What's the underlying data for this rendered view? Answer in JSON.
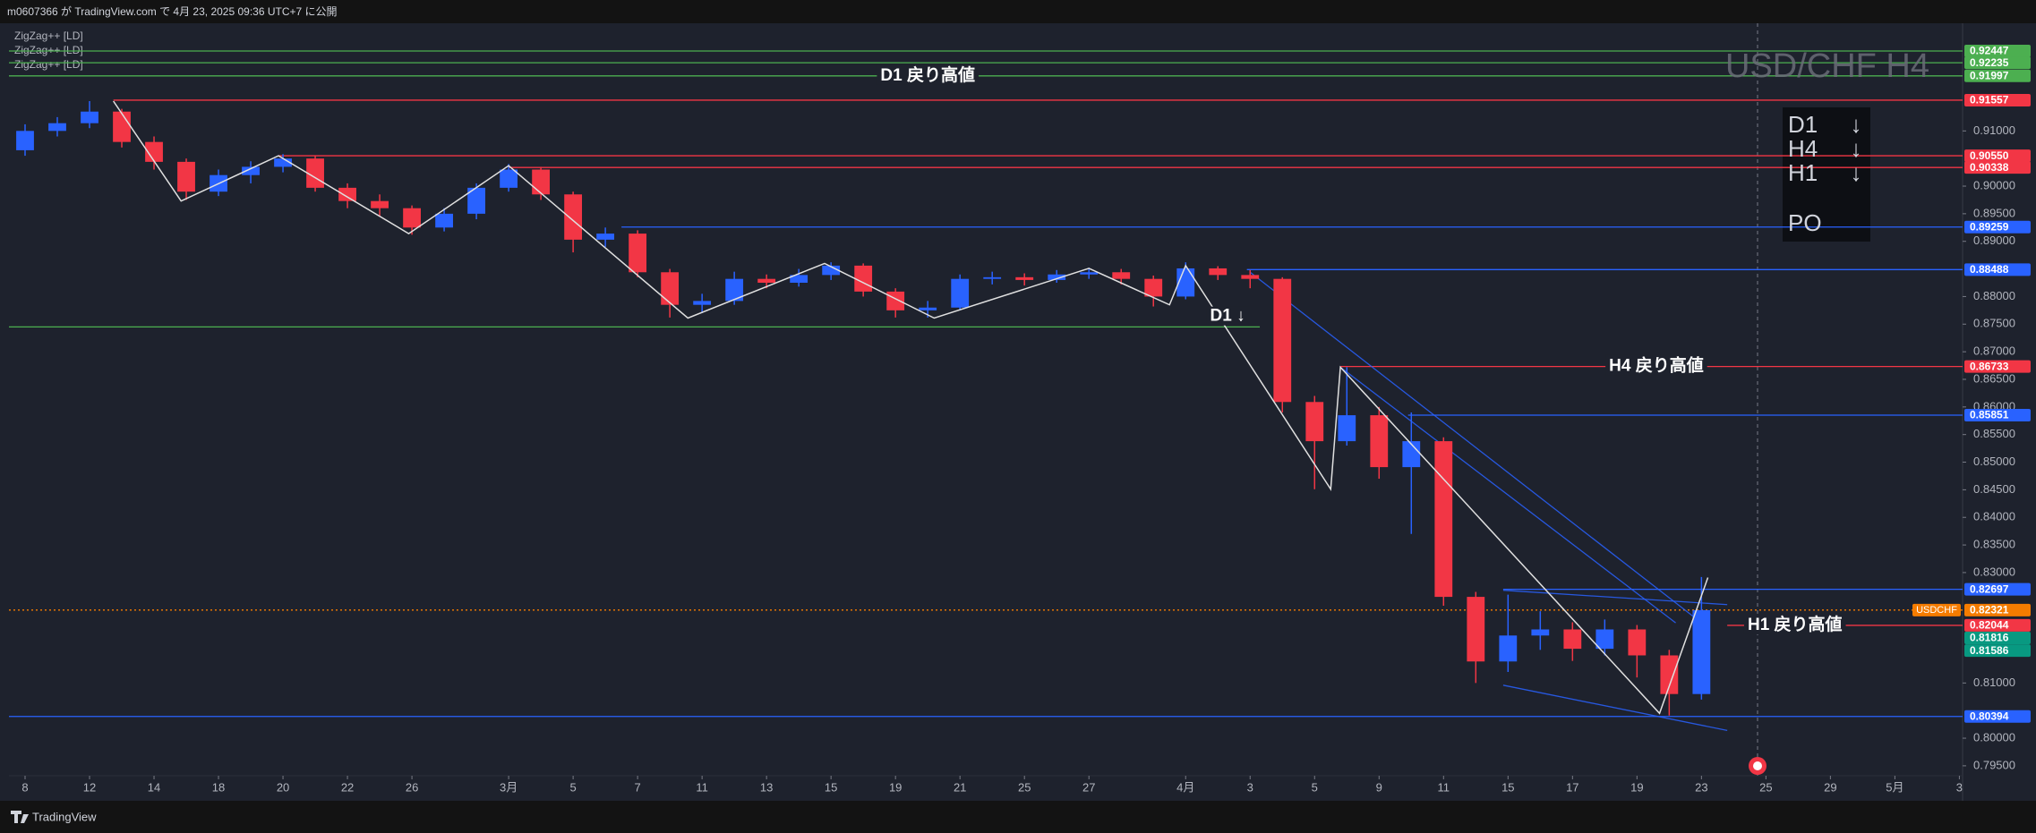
{
  "header": {
    "title": "m0607366 が TradingView.com で 4月 23, 2025 09:36 UTC+7 に公開"
  },
  "footer": {
    "brand": "TradingView"
  },
  "chart_data": {
    "type": "candlestick",
    "watermark": "USD/CHF H4",
    "indicators": [
      "ZigZag++ [LD]",
      "ZigZag++ [LD]",
      "ZigZag++ [LD]"
    ],
    "up_color": "#2962ff",
    "down_color": "#f23645",
    "xlim": [
      -0.5,
      60.1
    ],
    "xticks": [
      {
        "value": 0,
        "label": "8"
      },
      {
        "value": 2,
        "label": "12"
      },
      {
        "value": 4,
        "label": "14"
      },
      {
        "value": 6,
        "label": "18"
      },
      {
        "value": 8,
        "label": "20"
      },
      {
        "value": 10,
        "label": "22"
      },
      {
        "value": 12,
        "label": "26"
      },
      {
        "value": 15,
        "label": "3月"
      },
      {
        "value": 17,
        "label": "5"
      },
      {
        "value": 19,
        "label": "7"
      },
      {
        "value": 21,
        "label": "11"
      },
      {
        "value": 23,
        "label": "13"
      },
      {
        "value": 25,
        "label": "15"
      },
      {
        "value": 27,
        "label": "19"
      },
      {
        "value": 29,
        "label": "21"
      },
      {
        "value": 31,
        "label": "25"
      },
      {
        "value": 33,
        "label": "27"
      },
      {
        "value": 36,
        "label": "4月"
      },
      {
        "value": 38,
        "label": "3"
      },
      {
        "value": 40,
        "label": "5"
      },
      {
        "value": 42,
        "label": "9"
      },
      {
        "value": 44,
        "label": "11"
      },
      {
        "value": 46,
        "label": "15"
      },
      {
        "value": 48,
        "label": "17"
      },
      {
        "value": 50,
        "label": "19"
      },
      {
        "value": 52,
        "label": "23"
      },
      {
        "value": 54,
        "label": "25"
      },
      {
        "value": 56,
        "label": "29"
      },
      {
        "value": 58,
        "label": "5月"
      },
      {
        "value": 60,
        "label": "3"
      }
    ],
    "ylim": [
      0.7932,
      0.9295
    ],
    "yticks": [
      {
        "value": 0.795,
        "label": "0.79500"
      },
      {
        "value": 0.8,
        "label": "0.80000"
      },
      {
        "value": 0.81,
        "label": "0.81000"
      },
      {
        "value": 0.83,
        "label": "0.83000"
      },
      {
        "value": 0.835,
        "label": "0.83500"
      },
      {
        "value": 0.84,
        "label": "0.84000"
      },
      {
        "value": 0.845,
        "label": "0.84500"
      },
      {
        "value": 0.85,
        "label": "0.85000"
      },
      {
        "value": 0.855,
        "label": "0.85500"
      },
      {
        "value": 0.86,
        "label": "0.86000"
      },
      {
        "value": 0.865,
        "label": "0.86500"
      },
      {
        "value": 0.87,
        "label": "0.87000"
      },
      {
        "value": 0.875,
        "label": "0.87500"
      },
      {
        "value": 0.88,
        "label": "0.88000"
      },
      {
        "value": 0.89,
        "label": "0.89000"
      },
      {
        "value": 0.895,
        "label": "0.89500"
      },
      {
        "value": 0.9,
        "label": "0.90000"
      },
      {
        "value": 0.91,
        "label": "0.91000"
      }
    ],
    "grid": false,
    "candles": {
      "x": [
        0,
        1,
        2,
        3,
        4,
        5,
        6,
        7,
        8,
        9,
        10,
        11,
        12,
        13,
        14,
        15,
        16,
        17,
        18,
        19,
        20,
        21,
        22,
        23,
        24,
        25,
        26,
        27,
        28,
        29,
        30,
        31,
        32,
        33,
        34,
        35,
        36,
        37,
        38,
        39,
        40,
        41,
        42,
        43,
        44,
        45,
        46,
        47,
        48,
        49,
        50,
        51,
        52
      ],
      "open": [
        0.9065,
        0.91,
        0.9114,
        0.9135,
        0.908,
        0.9044,
        0.899,
        0.902,
        0.9035,
        0.905,
        0.8997,
        0.8973,
        0.896,
        0.8925,
        0.895,
        0.8997,
        0.903,
        0.8985,
        0.8903,
        0.8914,
        0.8844,
        0.8785,
        0.8792,
        0.8832,
        0.8825,
        0.8839,
        0.8856,
        0.8809,
        0.8775,
        0.878,
        0.8832,
        0.8835,
        0.883,
        0.884,
        0.8844,
        0.8832,
        0.88,
        0.8851,
        0.8839,
        0.8832,
        0.8609,
        0.8538,
        0.8585,
        0.8491,
        0.8538,
        0.8256,
        0.8139,
        0.8186,
        0.8197,
        0.8162,
        0.8197,
        0.815,
        0.808
      ],
      "high": [
        0.9112,
        0.9125,
        0.9154,
        0.914,
        0.909,
        0.905,
        0.903,
        0.9045,
        0.9058,
        0.9055,
        0.9005,
        0.8985,
        0.8965,
        0.896,
        0.9005,
        0.904,
        0.9035,
        0.899,
        0.8925,
        0.892,
        0.885,
        0.8805,
        0.8845,
        0.884,
        0.885,
        0.8862,
        0.886,
        0.8815,
        0.8792,
        0.884,
        0.8845,
        0.8842,
        0.8848,
        0.8852,
        0.885,
        0.8838,
        0.8862,
        0.8855,
        0.8848,
        0.8835,
        0.862,
        0.8672,
        0.86,
        0.859,
        0.8545,
        0.8265,
        0.826,
        0.823,
        0.821,
        0.8215,
        0.8205,
        0.816,
        0.8292
      ],
      "low": [
        0.9055,
        0.909,
        0.9105,
        0.907,
        0.903,
        0.8975,
        0.8982,
        0.9005,
        0.9025,
        0.899,
        0.896,
        0.8945,
        0.8912,
        0.8918,
        0.894,
        0.899,
        0.8975,
        0.888,
        0.889,
        0.8835,
        0.8762,
        0.877,
        0.8785,
        0.8815,
        0.8818,
        0.883,
        0.88,
        0.8762,
        0.8762,
        0.8775,
        0.8822,
        0.882,
        0.8825,
        0.8832,
        0.8822,
        0.8782,
        0.8795,
        0.883,
        0.8815,
        0.859,
        0.8451,
        0.853,
        0.847,
        0.837,
        0.824,
        0.81,
        0.812,
        0.816,
        0.814,
        0.815,
        0.811,
        0.8041,
        0.807
      ],
      "close": [
        0.91,
        0.9114,
        0.9135,
        0.908,
        0.9044,
        0.899,
        0.902,
        0.9035,
        0.905,
        0.8997,
        0.8973,
        0.896,
        0.8925,
        0.895,
        0.8997,
        0.903,
        0.8985,
        0.8903,
        0.8914,
        0.8844,
        0.8785,
        0.8792,
        0.8832,
        0.8825,
        0.8839,
        0.8856,
        0.8809,
        0.8775,
        0.878,
        0.8832,
        0.8835,
        0.883,
        0.884,
        0.8844,
        0.8832,
        0.88,
        0.8851,
        0.8839,
        0.8832,
        0.8609,
        0.8538,
        0.8585,
        0.8491,
        0.8538,
        0.8256,
        0.8139,
        0.8186,
        0.8197,
        0.8162,
        0.8197,
        0.815,
        0.808,
        0.8232
      ]
    },
    "zigzag": {
      "color": "#e0e0e0",
      "x": [
        2.74,
        4.84,
        7.86,
        11.9,
        15.0,
        20.56,
        24.8,
        28.2,
        33.0,
        35.5,
        36.0,
        40.5,
        40.8,
        50.7,
        52.2
      ],
      "y": [
        0.9154,
        0.8973,
        0.9055,
        0.8914,
        0.9037,
        0.8761,
        0.886,
        0.8761,
        0.8851,
        0.8785,
        0.8856,
        0.8451,
        0.8672,
        0.8045,
        0.8291
      ]
    },
    "trendlines": [
      {
        "color": "#2962ff",
        "x": [
          38.0,
          52.0
        ],
        "y": [
          0.8844,
          0.8209
        ]
      },
      {
        "color": "#2962ff",
        "x": [
          40.8,
          51.2
        ],
        "y": [
          0.8672,
          0.8209
        ]
      },
      {
        "color": "#2962ff",
        "x": [
          45.85,
          52.8
        ],
        "y": [
          0.8268,
          0.8242
        ]
      },
      {
        "color": "#2962ff",
        "x": [
          45.85,
          52.8
        ],
        "y": [
          0.8096,
          0.8014
        ]
      }
    ],
    "levels": [
      {
        "value": 0.92447,
        "color": "#4caf50",
        "x": [
          -0.5,
          60.1
        ]
      },
      {
        "value": 0.92235,
        "color": "#4caf50",
        "x": [
          -0.5,
          60.1
        ]
      },
      {
        "value": 0.91997,
        "color": "#4caf50",
        "x": [
          -0.5,
          60.1
        ]
      },
      {
        "value": 0.91557,
        "color": "#f23645",
        "x": [
          2.74,
          60.1
        ]
      },
      {
        "value": 0.9055,
        "label": "0.90550",
        "color": "#f23645",
        "x": [
          7.86,
          60.1
        ]
      },
      {
        "value": 0.90338,
        "color": "#f23645",
        "x": [
          15.0,
          60.1
        ]
      },
      {
        "value": 0.89259,
        "color": "#2962ff",
        "x": [
          18.5,
          60.1
        ]
      },
      {
        "value": 0.88488,
        "color": "#2962ff",
        "x": [
          37.9,
          60.1
        ]
      },
      {
        "value": 0.8745,
        "color": "#4caf50",
        "x": [
          -0.5,
          38.3
        ],
        "marker": false
      },
      {
        "value": 0.86733,
        "color": "#f23645",
        "x": [
          40.8,
          60.1
        ]
      },
      {
        "value": 0.85851,
        "color": "#2962ff",
        "x": [
          42.9,
          60.1
        ]
      },
      {
        "value": 0.82697,
        "color": "#2962ff",
        "x": [
          45.85,
          60.1
        ]
      },
      {
        "value": 0.82321,
        "color": "#f57c00",
        "x": [
          -0.5,
          60.1
        ],
        "style": "dotted",
        "tag": "USDCHF"
      },
      {
        "value": 0.82044,
        "color": "#f23645",
        "x": [
          52.8,
          60.1
        ]
      },
      {
        "value": 0.81816,
        "color": "#089981"
      },
      {
        "value": 0.81586,
        "color": "#089981"
      },
      {
        "value": 0.80394,
        "color": "#2962ff",
        "x": [
          -0.5,
          60.1
        ]
      }
    ],
    "annotations": [
      {
        "text": "D1 戻り高値",
        "x": 28.0,
        "y": 0.91997
      },
      {
        "text": "H4 戻り高値",
        "x": 50.6,
        "y": 0.86733
      },
      {
        "text": "H1 戻り高値",
        "x": 54.9,
        "y": 0.82044
      },
      {
        "text": "D1 ↓",
        "x": 37.3,
        "y": 0.8764
      }
    ],
    "trend_table": [
      {
        "tf": "D1",
        "dir": "↓"
      },
      {
        "tf": "H4",
        "dir": "↓"
      },
      {
        "tf": "H1",
        "dir": "↓"
      },
      {
        "tf": "PO"
      }
    ]
  }
}
